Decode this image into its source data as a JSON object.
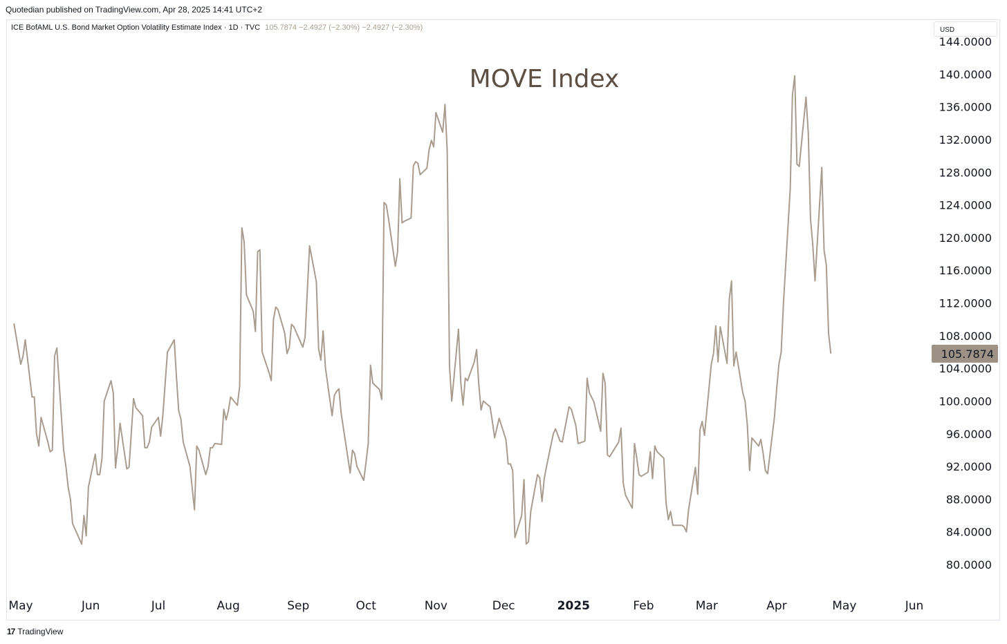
{
  "header": {
    "attribution": "Quotedian published on TradingView.com, Apr 28, 2025 14:41 UTC+2"
  },
  "symbol": {
    "name": "ICE BofAML U.S. Bond Market Option Volatility Estimate Index · 1D · TVC",
    "values": "105.7874  −2.4927 (−2.30%)  −2.4927 (−2.30%)"
  },
  "currency": "USD",
  "footer": {
    "logo_text": "TradingView",
    "logo_mark": "17"
  },
  "colors": {
    "line": "#a89c8e",
    "price_label_bg": "#9e9286",
    "title": "#5c4f43"
  },
  "chart_data": {
    "type": "line",
    "title": "MOVE Index",
    "xlabel": "",
    "ylabel": "",
    "ylim": [
      78,
      146
    ],
    "y_ticks": [
      80,
      84,
      88,
      92,
      96,
      100,
      104,
      108,
      112,
      116,
      120,
      124,
      128,
      132,
      136,
      140,
      144
    ],
    "y_tick_labels": [
      "80.0000",
      "84.0000",
      "88.0000",
      "92.0000",
      "96.0000",
      "100.0000",
      "104.0000",
      "108.0000",
      "112.0000",
      "116.0000",
      "120.0000",
      "124.0000",
      "128.0000",
      "132.0000",
      "136.0000",
      "140.0000",
      "144.0000"
    ],
    "x_ticks": [
      "2024-05-01",
      "2024-06-01",
      "2024-07-01",
      "2024-08-01",
      "2024-09-01",
      "2024-10-01",
      "2024-11-01",
      "2024-12-01",
      "2025-01-01",
      "2025-02-01",
      "2025-03-01",
      "2025-04-01",
      "2025-05-01",
      "2025-06-01"
    ],
    "x_tick_labels": [
      "May",
      "Jun",
      "Jul",
      "Aug",
      "Sep",
      "Oct",
      "Nov",
      "Dec",
      "2025",
      "Feb",
      "Mar",
      "Apr",
      "May",
      "Jun"
    ],
    "x_tick_bold": [
      false,
      false,
      false,
      false,
      false,
      false,
      false,
      false,
      true,
      false,
      false,
      false,
      false,
      false
    ],
    "last_value_label": "105.7874",
    "grid": false,
    "series": [
      {
        "x": [
          "2024-04-28",
          "2024-05-01",
          "2024-05-02",
          "2024-05-03",
          "2024-05-06",
          "2024-05-07",
          "2024-05-08",
          "2024-05-09",
          "2024-05-10",
          "2024-05-13",
          "2024-05-14",
          "2024-05-15",
          "2024-05-16",
          "2024-05-17",
          "2024-05-20",
          "2024-05-21",
          "2024-05-22",
          "2024-05-23",
          "2024-05-24",
          "2024-05-28",
          "2024-05-29",
          "2024-05-30",
          "2024-05-31",
          "2024-06-03",
          "2024-06-04",
          "2024-06-05",
          "2024-06-06",
          "2024-06-07",
          "2024-06-10",
          "2024-06-11",
          "2024-06-12",
          "2024-06-13",
          "2024-06-14",
          "2024-06-17",
          "2024-06-18",
          "2024-06-20",
          "2024-06-21",
          "2024-06-24",
          "2024-06-25",
          "2024-06-26",
          "2024-06-27",
          "2024-06-28",
          "2024-07-01",
          "2024-07-02",
          "2024-07-03",
          "2024-07-05",
          "2024-07-08",
          "2024-07-09",
          "2024-07-10",
          "2024-07-11",
          "2024-07-12",
          "2024-07-15",
          "2024-07-16",
          "2024-07-17",
          "2024-07-18",
          "2024-07-19",
          "2024-07-22",
          "2024-07-23",
          "2024-07-24",
          "2024-07-25",
          "2024-07-26",
          "2024-07-29",
          "2024-07-30",
          "2024-07-31",
          "2024-08-01",
          "2024-08-02",
          "2024-08-05",
          "2024-08-06",
          "2024-08-07",
          "2024-08-08",
          "2024-08-09",
          "2024-08-12",
          "2024-08-13",
          "2024-08-14",
          "2024-08-15",
          "2024-08-16",
          "2024-08-19",
          "2024-08-20",
          "2024-08-21",
          "2024-08-22",
          "2024-08-23",
          "2024-08-26",
          "2024-08-27",
          "2024-08-28",
          "2024-08-29",
          "2024-08-30",
          "2024-09-03",
          "2024-09-04",
          "2024-09-05",
          "2024-09-06",
          "2024-09-09",
          "2024-09-10",
          "2024-09-11",
          "2024-09-12",
          "2024-09-13",
          "2024-09-16",
          "2024-09-17",
          "2024-09-18",
          "2024-09-19",
          "2024-09-20",
          "2024-09-23",
          "2024-09-24",
          "2024-09-25",
          "2024-09-26",
          "2024-09-27",
          "2024-09-30",
          "2024-10-01",
          "2024-10-02",
          "2024-10-03",
          "2024-10-04",
          "2024-10-07",
          "2024-10-08",
          "2024-10-09",
          "2024-10-10",
          "2024-10-11",
          "2024-10-14",
          "2024-10-15",
          "2024-10-16",
          "2024-10-17",
          "2024-10-18",
          "2024-10-21",
          "2024-10-22",
          "2024-10-23",
          "2024-10-24",
          "2024-10-25",
          "2024-10-28",
          "2024-10-29",
          "2024-10-30",
          "2024-10-31",
          "2024-11-01",
          "2024-11-04",
          "2024-11-05",
          "2024-11-06",
          "2024-11-07",
          "2024-11-08",
          "2024-11-11",
          "2024-11-12",
          "2024-11-13",
          "2024-11-14",
          "2024-11-15",
          "2024-11-18",
          "2024-11-19",
          "2024-11-20",
          "2024-11-21",
          "2024-11-22",
          "2024-11-25",
          "2024-11-26",
          "2024-11-27",
          "2024-11-29",
          "2024-12-02",
          "2024-12-03",
          "2024-12-04",
          "2024-12-05",
          "2024-12-06",
          "2024-12-09",
          "2024-12-10",
          "2024-12-11",
          "2024-12-12",
          "2024-12-13",
          "2024-12-16",
          "2024-12-17",
          "2024-12-18",
          "2024-12-19",
          "2024-12-20",
          "2024-12-23",
          "2024-12-24",
          "2024-12-26",
          "2024-12-27",
          "2024-12-30",
          "2024-12-31",
          "2025-01-02",
          "2025-01-03",
          "2025-01-06",
          "2025-01-07",
          "2025-01-08",
          "2025-01-10",
          "2025-01-13",
          "2025-01-14",
          "2025-01-15",
          "2025-01-16",
          "2025-01-17",
          "2025-01-21",
          "2025-01-22",
          "2025-01-23",
          "2025-01-24",
          "2025-01-27",
          "2025-01-28",
          "2025-01-29",
          "2025-01-30",
          "2025-01-31",
          "2025-02-03",
          "2025-02-04",
          "2025-02-05",
          "2025-02-06",
          "2025-02-07",
          "2025-02-10",
          "2025-02-11",
          "2025-02-12",
          "2025-02-13",
          "2025-02-14",
          "2025-02-18",
          "2025-02-19",
          "2025-02-20",
          "2025-02-21",
          "2025-02-24",
          "2025-02-25",
          "2025-02-26",
          "2025-02-27",
          "2025-02-28",
          "2025-03-03",
          "2025-03-04",
          "2025-03-05",
          "2025-03-06",
          "2025-03-07",
          "2025-03-10",
          "2025-03-11",
          "2025-03-12",
          "2025-03-13",
          "2025-03-14",
          "2025-03-17",
          "2025-03-18",
          "2025-03-19",
          "2025-03-20",
          "2025-03-21",
          "2025-03-24",
          "2025-03-25",
          "2025-03-26",
          "2025-03-27",
          "2025-03-28",
          "2025-03-31",
          "2025-04-01",
          "2025-04-02",
          "2025-04-03",
          "2025-04-04",
          "2025-04-07",
          "2025-04-08",
          "2025-04-09",
          "2025-04-10",
          "2025-04-11",
          "2025-04-14",
          "2025-04-15",
          "2025-04-16",
          "2025-04-17",
          "2025-04-18",
          "2025-04-21",
          "2025-04-22",
          "2025-04-23",
          "2025-04-24",
          "2025-04-25"
        ],
        "values": [
          109.5,
          104.5,
          105.5,
          107.5,
          100.5,
          100.5,
          96,
          94.5,
          98,
          95,
          93.8,
          94,
          105.5,
          106.5,
          94,
          92,
          89.5,
          88,
          85,
          82.5,
          86,
          83.5,
          89.5,
          93.5,
          91,
          91,
          93,
          100,
          102.5,
          101,
          91.8,
          94.3,
          97.3,
          91.7,
          91.9,
          100.3,
          99.2,
          98.2,
          94.3,
          94.3,
          95,
          96.8,
          98,
          95.7,
          98.3,
          106,
          107.5,
          103,
          98.8,
          97.8,
          95,
          92,
          89.3,
          86.7,
          94.5,
          94,
          91,
          92,
          94.3,
          94.3,
          94.8,
          94.7,
          99,
          97.7,
          98.8,
          100.5,
          99.5,
          101.8,
          121.2,
          119.5,
          113,
          111,
          108.5,
          118.3,
          118.5,
          106,
          103.5,
          102.5,
          110,
          111.5,
          111.2,
          108.3,
          105.8,
          106.6,
          109.4,
          109.1,
          106.6,
          107.8,
          113.6,
          119,
          114.6,
          106.4,
          105,
          108.6,
          104.1,
          98.2,
          100.7,
          101.2,
          101.5,
          98.5,
          93,
          91.2,
          94,
          93.5,
          92,
          90.3,
          92.5,
          94.8,
          104.4,
          102.2,
          101.4,
          100.2,
          124.3,
          124,
          122.3,
          116.5,
          118.3,
          127.2,
          121.8,
          122,
          122.4,
          128.8,
          129.3,
          129.1,
          127.7,
          128.5,
          130.8,
          131.9,
          131.1,
          135.3,
          132.9,
          136.3,
          130.6,
          104.3,
          100,
          108.8,
          102.3,
          99.5,
          102.8,
          102.5,
          104.8,
          106.3,
          102,
          98.9,
          100,
          99.3,
          97.5,
          95.5,
          97.9,
          95.3,
          92.3,
          92.3,
          91.5,
          83.3,
          86,
          90.4,
          82.5,
          82.8,
          86.5,
          91,
          90.6,
          87.7,
          90.5,
          92,
          96,
          96.6,
          95.1,
          95,
          99.3,
          99,
          97,
          94.8,
          95.1,
          102.8,
          101,
          99.9,
          96.3,
          103.4,
          102.2,
          93.4,
          93.2,
          95,
          96.7,
          90,
          88.5,
          86.9,
          94.8,
          93,
          91,
          90.8,
          91.3,
          93.8,
          90.5,
          94.5,
          93.8,
          93,
          87.5,
          85.5,
          86.5,
          84.8,
          84.8,
          84.6,
          84,
          86.8,
          91.9,
          88.6,
          96.5,
          97.5,
          95.8,
          104.5,
          105.8,
          109.2,
          104.8,
          109.1,
          104.6,
          112.5,
          114.7,
          104.3,
          106,
          101,
          100,
          97,
          91.5,
          95.5,
          94.5,
          95.3,
          93.6,
          91.5,
          91.1,
          98,
          101.5,
          104.5,
          106,
          112,
          126,
          137.5,
          139.8,
          129,
          128.7,
          137.2,
          132.8,
          122.3,
          119.1,
          114.7,
          128.6,
          118.5,
          116.6,
          108.3,
          105.8
        ]
      }
    ]
  }
}
